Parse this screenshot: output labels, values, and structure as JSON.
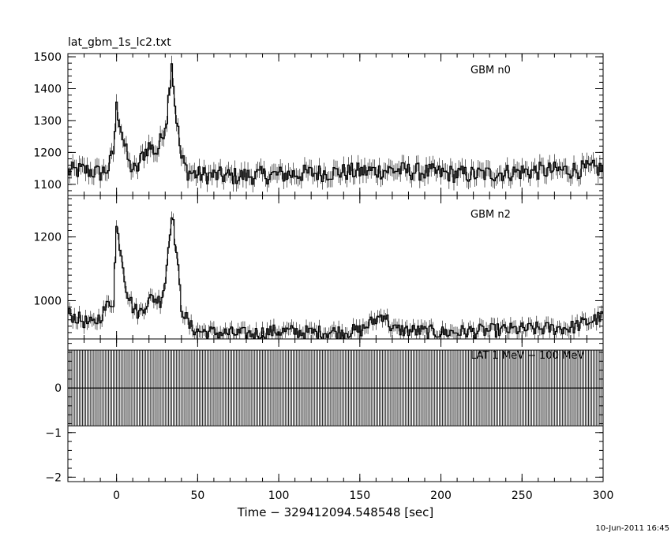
{
  "title": "lat_gbm_1s_lc2.txt",
  "xlabel": "Time − 329412094.548548 [sec]",
  "timestamp": "10-Jun-2011 16:45",
  "x_ticks": [
    0,
    50,
    100,
    150,
    200,
    250,
    300
  ],
  "chart_data": [
    {
      "type": "line",
      "panel": "top",
      "label": "GBM n0",
      "xlim": [
        -30,
        300
      ],
      "ylim": [
        1065,
        1510
      ],
      "y_ticks": [
        1100,
        1200,
        1300,
        1400,
        1500
      ],
      "x_step": 1,
      "series": [
        {
          "name": "GBM n0",
          "x_start": -30,
          "keypoints": [
            [
              -30,
              1140
            ],
            [
              -20,
              1145
            ],
            [
              -10,
              1135
            ],
            [
              -5,
              1150
            ],
            [
              -2,
              1200
            ],
            [
              0,
              1340
            ],
            [
              2,
              1300
            ],
            [
              5,
              1220
            ],
            [
              8,
              1160
            ],
            [
              12,
              1140
            ],
            [
              16,
              1190
            ],
            [
              20,
              1220
            ],
            [
              25,
              1200
            ],
            [
              28,
              1250
            ],
            [
              31,
              1310
            ],
            [
              34,
              1490
            ],
            [
              36,
              1350
            ],
            [
              40,
              1180
            ],
            [
              44,
              1140
            ],
            [
              50,
              1130
            ],
            [
              70,
              1125
            ],
            [
              100,
              1130
            ],
            [
              120,
              1135
            ],
            [
              150,
              1140
            ],
            [
              170,
              1145
            ],
            [
              200,
              1135
            ],
            [
              220,
              1130
            ],
            [
              250,
              1140
            ],
            [
              280,
              1145
            ],
            [
              300,
              1150
            ]
          ],
          "noise": 28
        }
      ]
    },
    {
      "type": "line",
      "panel": "middle",
      "label": "GBM n2",
      "xlim": [
        -30,
        300
      ],
      "ylim": [
        880,
        1330
      ],
      "y_ticks": [
        1000,
        1200
      ],
      "x_step": 1,
      "series": [
        {
          "name": "GBM n2",
          "x_start": -30,
          "keypoints": [
            [
              -30,
              960
            ],
            [
              -20,
              935
            ],
            [
              -15,
              925
            ],
            [
              -10,
              950
            ],
            [
              -5,
              990
            ],
            [
              -2,
              1000
            ],
            [
              0,
              1230
            ],
            [
              3,
              1150
            ],
            [
              6,
              1040
            ],
            [
              10,
              980
            ],
            [
              14,
              960
            ],
            [
              18,
              990
            ],
            [
              22,
              1010
            ],
            [
              27,
              1000
            ],
            [
              30,
              1060
            ],
            [
              34,
              1280
            ],
            [
              37,
              1150
            ],
            [
              40,
              980
            ],
            [
              45,
              920
            ],
            [
              50,
              905
            ],
            [
              60,
              900
            ],
            [
              80,
              895
            ],
            [
              100,
              905
            ],
            [
              120,
              900
            ],
            [
              150,
              905
            ],
            [
              165,
              960
            ],
            [
              170,
              910
            ],
            [
              200,
              900
            ],
            [
              250,
              910
            ],
            [
              280,
              915
            ],
            [
              300,
              950
            ]
          ],
          "noise": 22
        }
      ]
    },
    {
      "type": "line",
      "panel": "bottom",
      "label": "LAT 1 MeV − 100 MeV",
      "xlim": [
        -30,
        300
      ],
      "ylim": [
        -2.1,
        1.1
      ],
      "y_ticks": [
        -2,
        -1,
        0
      ],
      "series": [
        {
          "name": "LAT",
          "x_start": -30,
          "x_step": 1,
          "value": 0,
          "error": 0.85
        }
      ]
    }
  ]
}
